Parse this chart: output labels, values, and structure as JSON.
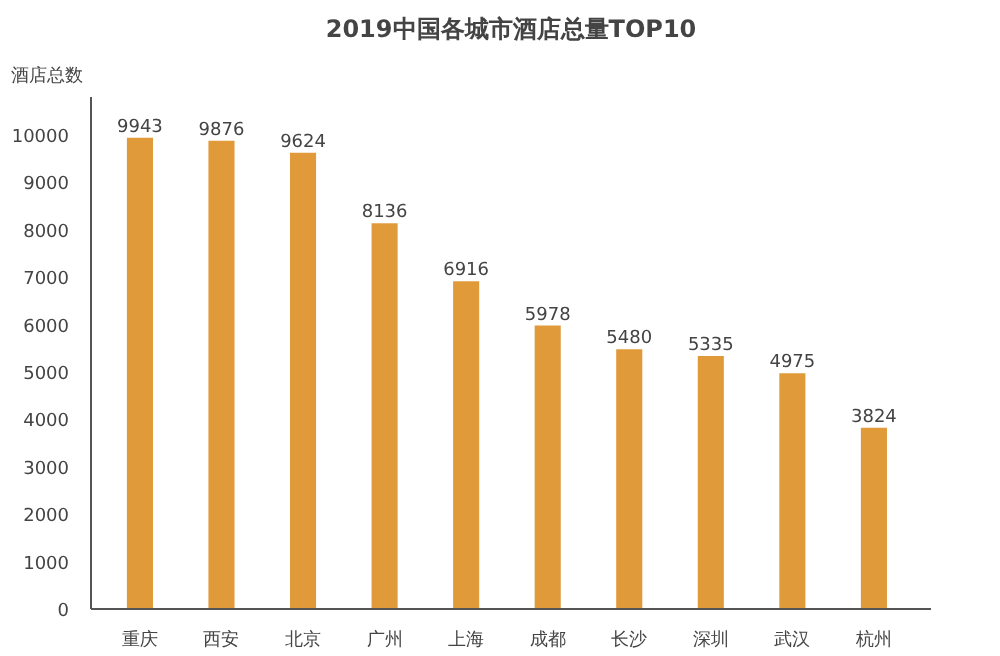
{
  "chart_data": {
    "type": "bar",
    "title": "2019中国各城市酒店总量TOP10",
    "ylabel": "酒店总数",
    "categories": [
      "重庆",
      "西安",
      "北京",
      "广州",
      "上海",
      "成都",
      "长沙",
      "深圳",
      "武汉",
      "杭州"
    ],
    "values": [
      9943,
      9876,
      9624,
      8136,
      6916,
      5978,
      5480,
      5335,
      4975,
      3824
    ],
    "color": "#e09a3a",
    "ylim": [
      0,
      10800
    ],
    "yticks": [
      0,
      1000,
      2000,
      3000,
      4000,
      5000,
      6000,
      7000,
      8000,
      9000,
      10000
    ],
    "grid": false,
    "data_labels": true
  }
}
